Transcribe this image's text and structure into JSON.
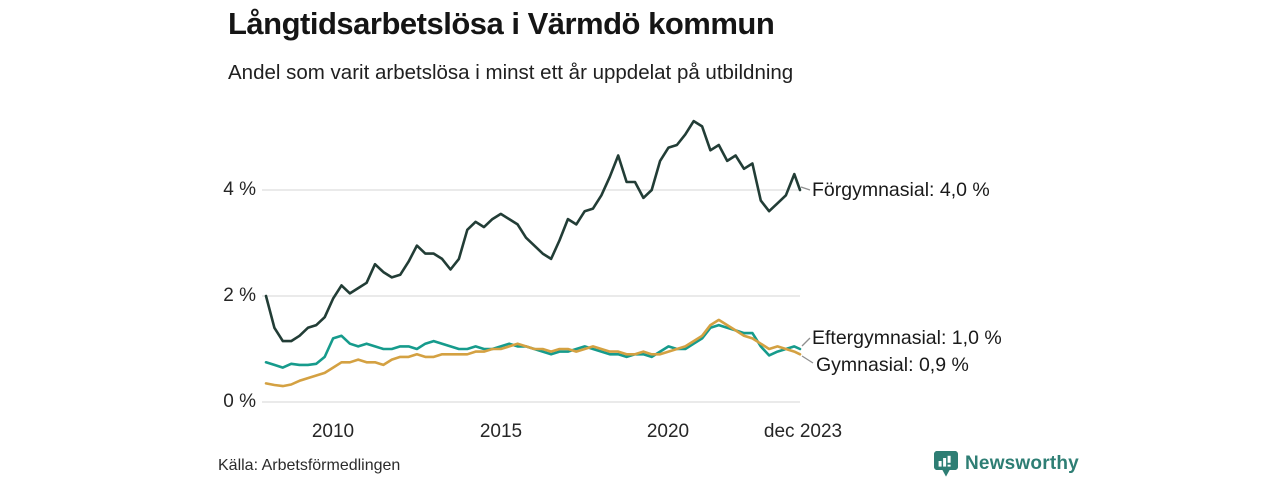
{
  "header": {
    "title": "Långtidsarbetslösa i Värmdö kommun",
    "subtitle": "Andel som varit arbetslösa i minst ett år uppdelat på utbildning"
  },
  "chart_data": {
    "type": "line",
    "title": "Långtidsarbetslösa i Värmdö kommun",
    "subtitle": "Andel som varit arbetslösa i minst ett år uppdelat på utbildning",
    "xlabel": "",
    "ylabel": "",
    "y_unit": "%",
    "ylim": [
      0,
      5.5
    ],
    "xlim": [
      2008,
      2023.92
    ],
    "grid": "horizontal",
    "legend_position": "right-end-labels",
    "x": [
      2008,
      2008.25,
      2008.5,
      2008.75,
      2009,
      2009.25,
      2009.5,
      2009.75,
      2010,
      2010.25,
      2010.5,
      2010.75,
      2011,
      2011.25,
      2011.5,
      2011.75,
      2012,
      2012.25,
      2012.5,
      2012.75,
      2013,
      2013.25,
      2013.5,
      2013.75,
      2014,
      2014.25,
      2014.5,
      2014.75,
      2015,
      2015.25,
      2015.5,
      2015.75,
      2016,
      2016.25,
      2016.5,
      2016.75,
      2017,
      2017.25,
      2017.5,
      2017.75,
      2018,
      2018.25,
      2018.5,
      2018.75,
      2019,
      2019.25,
      2019.5,
      2019.75,
      2020,
      2020.25,
      2020.5,
      2020.75,
      2021,
      2021.25,
      2021.5,
      2021.75,
      2022,
      2022.25,
      2022.5,
      2022.75,
      2023,
      2023.25,
      2023.5,
      2023.75,
      2023.92
    ],
    "series": [
      {
        "name": "Förgymnasial",
        "end_label": "Förgymnasial: 4,0 %",
        "last_value": "4,0 %",
        "color": "#223d36",
        "values": [
          2.0,
          1.4,
          1.15,
          1.15,
          1.25,
          1.4,
          1.45,
          1.6,
          1.95,
          2.2,
          2.05,
          2.15,
          2.25,
          2.6,
          2.45,
          2.35,
          2.4,
          2.65,
          2.95,
          2.8,
          2.8,
          2.7,
          2.5,
          2.7,
          3.25,
          3.4,
          3.3,
          3.45,
          3.55,
          3.45,
          3.35,
          3.1,
          2.95,
          2.8,
          2.7,
          3.05,
          3.45,
          3.35,
          3.6,
          3.65,
          3.9,
          4.25,
          4.65,
          4.15,
          4.15,
          3.85,
          4.0,
          4.55,
          4.8,
          4.85,
          5.05,
          5.3,
          5.2,
          4.75,
          4.85,
          4.55,
          4.65,
          4.4,
          4.5,
          3.8,
          3.6,
          3.75,
          3.9,
          4.3,
          4.0
        ]
      },
      {
        "name": "Eftergymnasial",
        "end_label": "Eftergymnasial: 1,0 %",
        "last_value": "1,0 %",
        "color": "#169b8c",
        "values": [
          0.75,
          0.7,
          0.65,
          0.72,
          0.7,
          0.7,
          0.72,
          0.85,
          1.2,
          1.25,
          1.1,
          1.05,
          1.1,
          1.05,
          1.0,
          1.0,
          1.05,
          1.05,
          1.0,
          1.1,
          1.15,
          1.1,
          1.05,
          1.0,
          1.0,
          1.05,
          1.0,
          1.0,
          1.05,
          1.1,
          1.05,
          1.05,
          1.0,
          0.95,
          0.9,
          0.95,
          0.95,
          1.0,
          1.05,
          1.0,
          0.95,
          0.9,
          0.9,
          0.85,
          0.9,
          0.9,
          0.85,
          0.95,
          1.05,
          1.0,
          1.0,
          1.1,
          1.2,
          1.4,
          1.45,
          1.4,
          1.35,
          1.3,
          1.3,
          1.05,
          0.88,
          0.95,
          1.0,
          1.05,
          1.0
        ]
      },
      {
        "name": "Gymnasial",
        "end_label": "Gymnasial: 0,9 %",
        "last_value": "0,9 %",
        "color": "#d4a142",
        "values": [
          0.35,
          0.32,
          0.3,
          0.33,
          0.4,
          0.45,
          0.5,
          0.55,
          0.65,
          0.75,
          0.75,
          0.8,
          0.75,
          0.75,
          0.7,
          0.8,
          0.85,
          0.85,
          0.9,
          0.85,
          0.85,
          0.9,
          0.9,
          0.9,
          0.9,
          0.95,
          0.95,
          1.0,
          1.0,
          1.05,
          1.1,
          1.05,
          1.0,
          1.0,
          0.95,
          1.0,
          1.0,
          0.95,
          1.0,
          1.05,
          1.0,
          0.95,
          0.95,
          0.9,
          0.9,
          0.95,
          0.9,
          0.9,
          0.95,
          1.0,
          1.05,
          1.15,
          1.25,
          1.45,
          1.55,
          1.45,
          1.35,
          1.25,
          1.2,
          1.1,
          1.0,
          1.05,
          1.0,
          0.95,
          0.9
        ]
      }
    ],
    "yticks": [
      {
        "value": 0,
        "label": "0 %"
      },
      {
        "value": 2,
        "label": "2 %"
      },
      {
        "value": 4,
        "label": "4 %"
      }
    ],
    "xticks": [
      {
        "value": 2010,
        "label": "2010"
      },
      {
        "value": 2015,
        "label": "2015"
      },
      {
        "value": 2020,
        "label": "2020"
      },
      {
        "value": 2023.92,
        "label": "dec 2023"
      }
    ]
  },
  "footer": {
    "source": "Källa: Arbetsförmedlingen",
    "brand": "Newsworthy"
  },
  "colors": {
    "forgymnasial_line": "#223d36",
    "eftergymnasial_line": "#169b8c",
    "gymnasial_line": "#d4a142",
    "gridline": "#e3e3e3",
    "connector": "#8f8f8f",
    "brand_teal": "#2e7e74",
    "text": "#1a1a1a"
  }
}
